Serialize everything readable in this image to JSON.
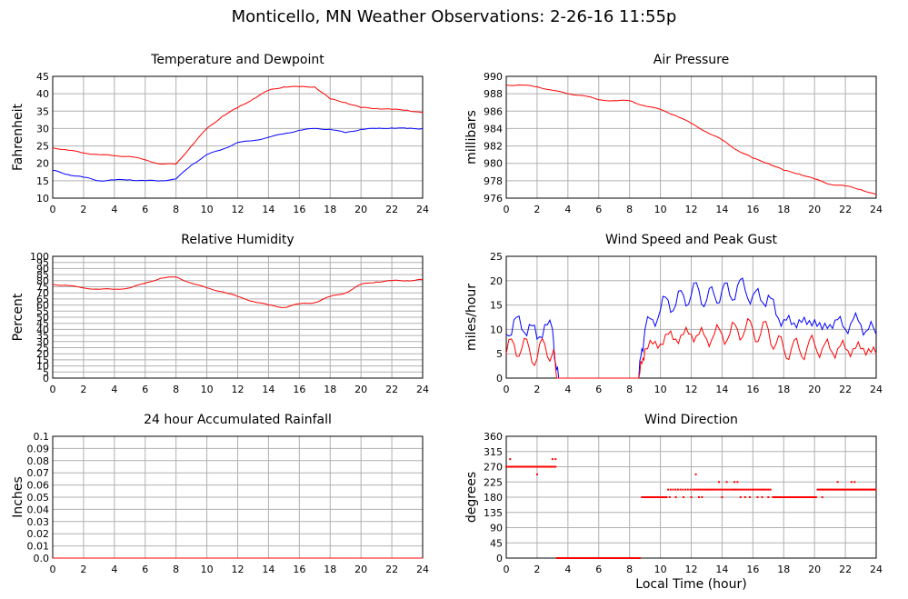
{
  "title": "Monticello, MN Weather Observations: 2-26-16 11:55p",
  "shared_xlabel": "Local Time (hour)",
  "colors": {
    "red": "#ff0000",
    "blue": "#0000ff",
    "grid": "#b0b0b0",
    "frame": "#000000"
  },
  "chart_data": [
    {
      "id": "temp",
      "type": "line",
      "title": "Temperature and Dewpoint",
      "ylabel": "Fahrenheit",
      "xlim": [
        0,
        24
      ],
      "ylim": [
        10,
        45
      ],
      "xticks": [
        "0",
        "2",
        "4",
        "6",
        "8",
        "10",
        "12",
        "14",
        "16",
        "18",
        "20",
        "22",
        "24"
      ],
      "yticks": [
        "10",
        "15",
        "20",
        "25",
        "30",
        "35",
        "40",
        "45"
      ],
      "x": [
        0,
        1,
        2,
        3,
        4,
        5,
        6,
        7,
        8,
        9,
        10,
        11,
        12,
        13,
        14,
        15,
        16,
        17,
        18,
        19,
        20,
        21,
        22,
        23,
        24
      ],
      "series": [
        {
          "color": "#ff0000",
          "values": [
            24.5,
            23.8,
            23,
            22.5,
            22.2,
            22,
            21,
            19.8,
            19.8,
            25,
            30,
            33.5,
            36,
            38.5,
            41,
            42,
            42,
            42,
            38.5,
            37.5,
            36,
            35.8,
            35.5,
            35.3,
            34.5
          ]
        },
        {
          "color": "#0000ff",
          "values": [
            18,
            16.8,
            16,
            15,
            15.2,
            15.3,
            15,
            15,
            15.5,
            19.5,
            22.5,
            24,
            26,
            26.5,
            27.5,
            28.5,
            29.5,
            30,
            29.8,
            28.8,
            29.8,
            30,
            30.2,
            30,
            30
          ]
        }
      ]
    },
    {
      "id": "pressure",
      "type": "line",
      "title": "Air Pressure",
      "ylabel": "millibars",
      "xlim": [
        0,
        24
      ],
      "ylim": [
        976,
        990
      ],
      "xticks": [
        "0",
        "2",
        "4",
        "6",
        "8",
        "10",
        "12",
        "14",
        "16",
        "18",
        "20",
        "22",
        "24"
      ],
      "yticks": [
        "976",
        "978",
        "980",
        "982",
        "984",
        "986",
        "988",
        "990"
      ],
      "x": [
        0,
        1,
        2,
        3,
        4,
        5,
        6,
        7,
        8,
        9,
        10,
        11,
        12,
        13,
        14,
        15,
        16,
        17,
        18,
        19,
        20,
        21,
        22,
        23,
        24
      ],
      "series": [
        {
          "color": "#ff0000",
          "values": [
            989,
            989,
            988.8,
            988.4,
            988,
            987.8,
            987.3,
            987.2,
            987.2,
            986.6,
            986.2,
            985.5,
            984.6,
            983.6,
            982.7,
            981.5,
            980.6,
            980,
            979.2,
            978.8,
            978.2,
            977.6,
            977.4,
            977,
            976.4
          ]
        }
      ]
    },
    {
      "id": "rh",
      "type": "line",
      "title": "Relative Humidity",
      "ylabel": "Percent",
      "xlim": [
        0,
        24
      ],
      "ylim": [
        0,
        100
      ],
      "xticks": [
        "0",
        "2",
        "4",
        "6",
        "8",
        "10",
        "12",
        "14",
        "16",
        "18",
        "20",
        "22",
        "24"
      ],
      "yticks": [
        "0",
        "5",
        "10",
        "15",
        "20",
        "25",
        "30",
        "35",
        "40",
        "45",
        "50",
        "55",
        "60",
        "65",
        "70",
        "75",
        "80",
        "85",
        "90",
        "95",
        "100"
      ],
      "x": [
        0,
        1,
        2,
        3,
        4,
        5,
        6,
        7,
        8,
        9,
        10,
        11,
        12,
        13,
        14,
        15,
        16,
        17,
        18,
        19,
        20,
        21,
        22,
        23,
        24
      ],
      "series": [
        {
          "color": "#ff0000",
          "values": [
            77,
            76,
            74,
            73,
            73,
            74,
            78,
            82,
            83,
            78,
            74,
            71,
            67,
            63,
            60,
            58,
            61,
            62,
            67,
            70,
            77,
            79,
            80,
            80,
            81
          ]
        }
      ]
    },
    {
      "id": "wind",
      "type": "line",
      "title": "Wind Speed and Peak Gust",
      "ylabel": "miles/hour",
      "xlim": [
        0,
        24
      ],
      "ylim": [
        0,
        25
      ],
      "xticks": [
        "0",
        "2",
        "4",
        "6",
        "8",
        "10",
        "12",
        "14",
        "16",
        "18",
        "20",
        "22",
        "24"
      ],
      "yticks": [
        "0",
        "5",
        "10",
        "15",
        "20",
        "25"
      ],
      "x": [
        0,
        0.5,
        1,
        1.5,
        2,
        2.5,
        3,
        3.2,
        3.4,
        4,
        5,
        6,
        7,
        8,
        8.6,
        8.8,
        9,
        9.5,
        10,
        10.5,
        11,
        11.5,
        12,
        12.5,
        13,
        13.5,
        14,
        14.5,
        15,
        15.5,
        16,
        16.5,
        17,
        17.5,
        18,
        18.5,
        19,
        19.5,
        20,
        20.5,
        21,
        21.5,
        22,
        22.5,
        23,
        23.5,
        24
      ],
      "series": [
        {
          "color": "#0000ff",
          "values": [
            9,
            12,
            10,
            11,
            8,
            11,
            10,
            3,
            0,
            0,
            0,
            0,
            0,
            0,
            0,
            6,
            10,
            12,
            14,
            16,
            15,
            17,
            17,
            18,
            16,
            17,
            18,
            17,
            19,
            18,
            17,
            16,
            17,
            13,
            12,
            11,
            12,
            11,
            12,
            10,
            11,
            12,
            10,
            12,
            11,
            10,
            9
          ]
        },
        {
          "color": "#ff0000",
          "values": [
            5,
            7,
            6,
            6,
            4,
            7,
            5,
            2,
            0,
            0,
            0,
            0,
            0,
            0,
            0,
            3,
            6,
            7,
            7,
            9,
            8,
            9,
            9,
            9,
            8,
            9,
            9,
            9,
            10,
            10,
            10,
            9,
            10,
            7,
            6,
            6,
            6,
            6,
            7,
            6,
            6,
            6,
            6,
            6,
            6,
            6,
            5
          ]
        }
      ]
    },
    {
      "id": "rain",
      "type": "line",
      "title": "24 hour Accumulated Rainfall",
      "ylabel": "Inches",
      "xlim": [
        0,
        24
      ],
      "ylim": [
        0,
        0.1
      ],
      "xticks": [
        "0",
        "2",
        "4",
        "6",
        "8",
        "10",
        "12",
        "14",
        "16",
        "18",
        "20",
        "22",
        "24"
      ],
      "yticks": [
        "0.0",
        "0.01",
        "0.02",
        "0.03",
        "0.04",
        "0.05",
        "0.06",
        "0.07",
        "0.08",
        "0.09",
        "0.1"
      ],
      "x": [
        0,
        24
      ],
      "series": [
        {
          "color": "#ff0000",
          "values": [
            0,
            0
          ]
        }
      ]
    },
    {
      "id": "dir",
      "type": "scatter",
      "title": "Wind Direction",
      "ylabel": "degrees",
      "xlim": [
        0,
        24
      ],
      "ylim": [
        0,
        360
      ],
      "xticks": [
        "0",
        "2",
        "4",
        "6",
        "8",
        "10",
        "12",
        "14",
        "16",
        "18",
        "20",
        "22",
        "24"
      ],
      "yticks": [
        "0",
        "45",
        "90",
        "135",
        "180",
        "225",
        "270",
        "315",
        "360"
      ],
      "series": [
        {
          "color": "#ff0000",
          "segments": [
            {
              "from": 0,
              "to": 3.2,
              "value": 270,
              "step": 0.08
            },
            {
              "from": 3.3,
              "to": 8.7,
              "value": 0,
              "step": 0.08
            },
            {
              "from": 8.8,
              "to": 10.4,
              "value": 180,
              "step": 0.08
            },
            {
              "from": 10.5,
              "to": 12,
              "value": 202.5,
              "step": 0.16
            },
            {
              "from": 12.1,
              "to": 17.2,
              "value": 202.5,
              "step": 0.12
            },
            {
              "from": 17.3,
              "to": 20.1,
              "value": 180,
              "step": 0.08
            },
            {
              "from": 20.2,
              "to": 24,
              "value": 202.5,
              "step": 0.08
            }
          ],
          "points": [
            [
              0.25,
              292.5
            ],
            [
              2,
              247.5
            ],
            [
              3,
              292.5
            ],
            [
              3.2,
              292.5
            ],
            [
              10.6,
              180
            ],
            [
              11,
              180
            ],
            [
              11.5,
              180
            ],
            [
              12,
              180
            ],
            [
              12.3,
              247.5
            ],
            [
              12.5,
              180
            ],
            [
              12.7,
              180
            ],
            [
              13.8,
              225
            ],
            [
              14,
              180
            ],
            [
              14.3,
              225
            ],
            [
              14.8,
              225
            ],
            [
              15,
              225
            ],
            [
              15.2,
              180
            ],
            [
              15.5,
              180
            ],
            [
              15.8,
              180
            ],
            [
              16.3,
              180
            ],
            [
              16.6,
              180
            ],
            [
              17,
              180
            ],
            [
              20.5,
              180
            ],
            [
              21.5,
              225
            ],
            [
              22.4,
              225
            ],
            [
              22.6,
              225
            ]
          ]
        }
      ]
    }
  ]
}
